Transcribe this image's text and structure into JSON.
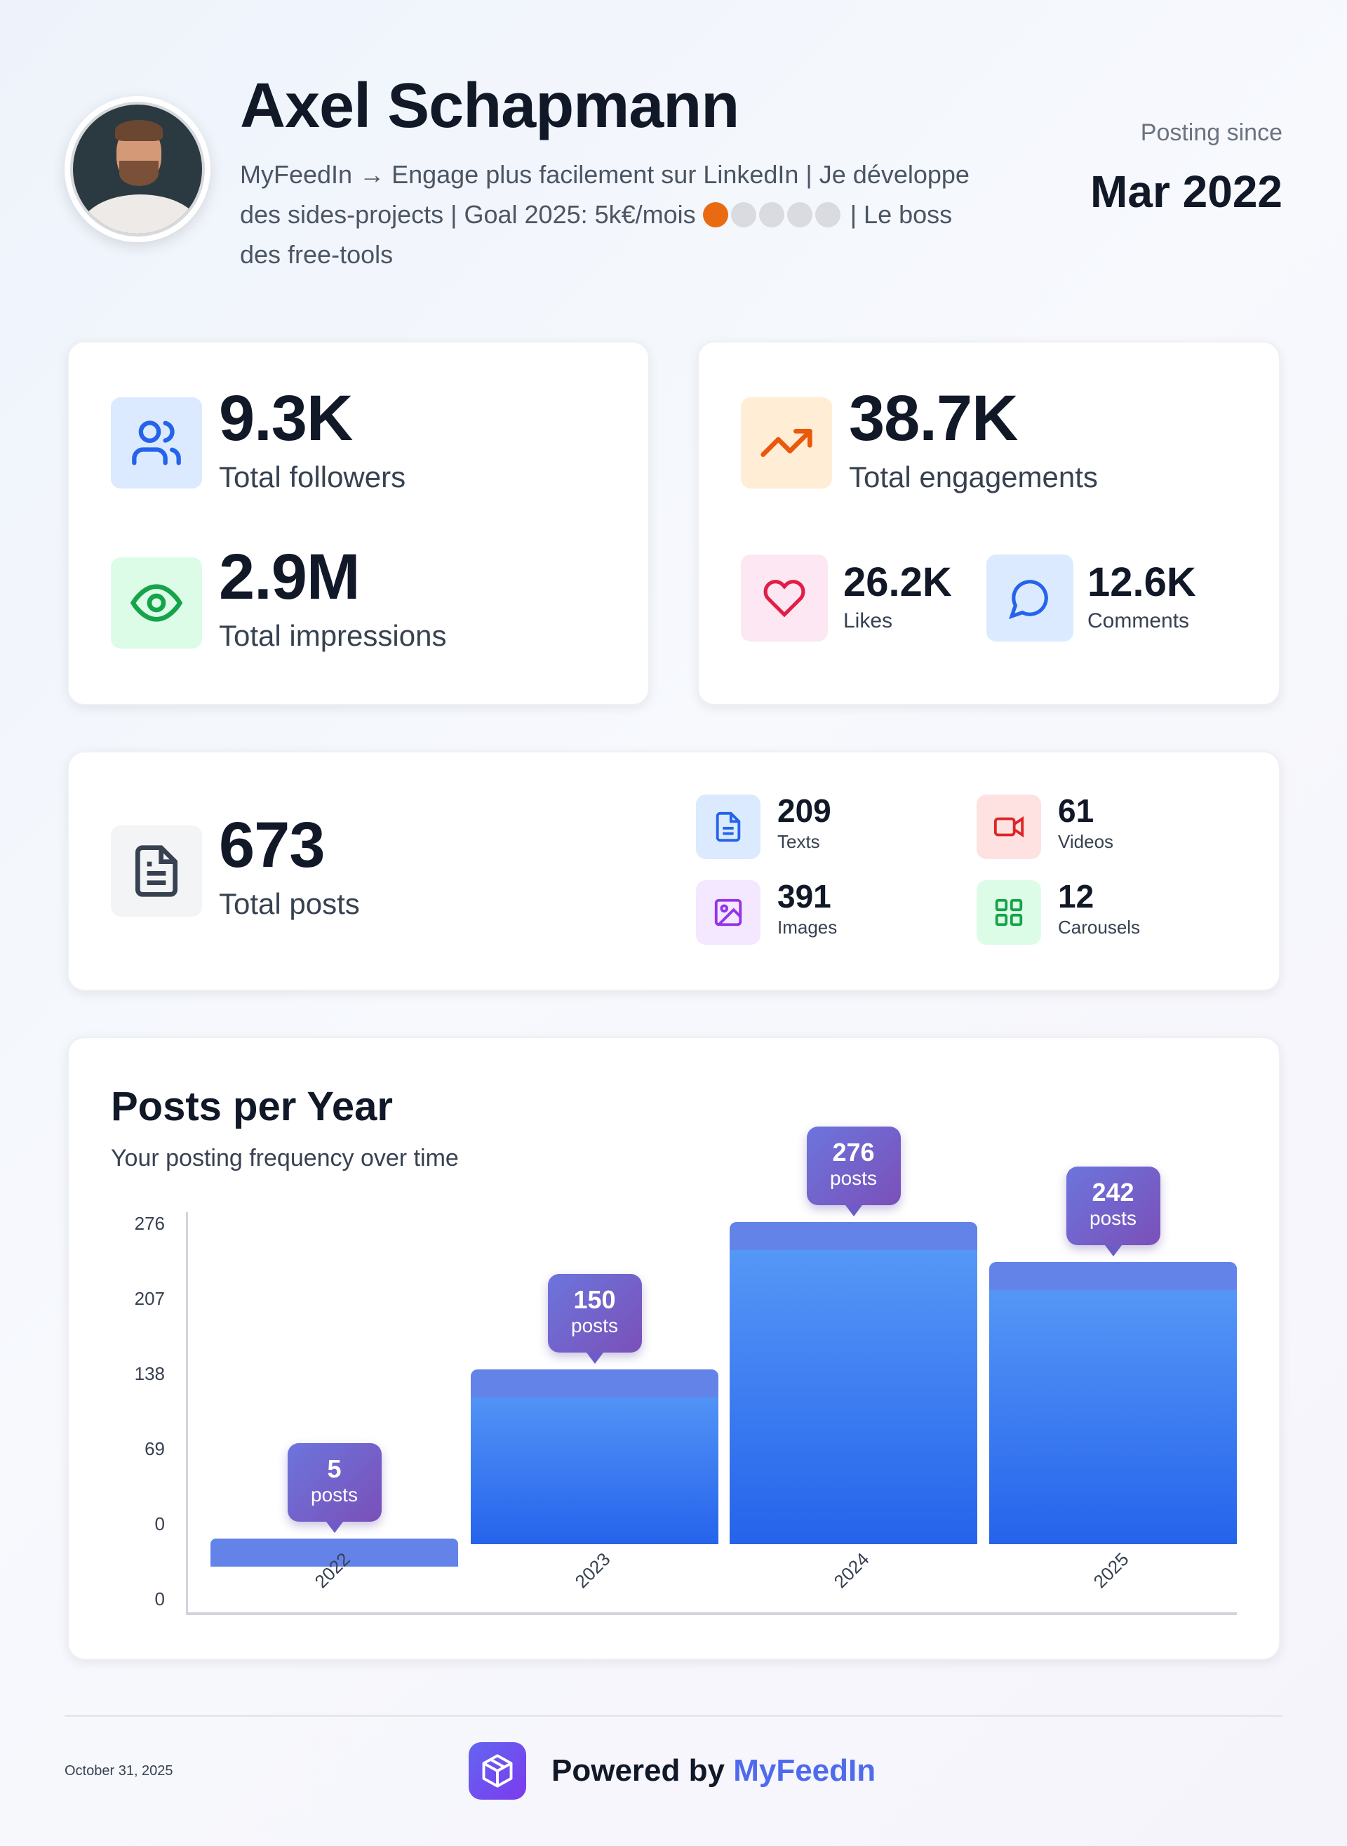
{
  "profile": {
    "name": "Axel Schapmann",
    "bio_line1": "MyFeedIn → Engage plus facilement sur LinkedIn | Je développe",
    "bio_line2a": "des sides-projects | Goal 2025: 5k€/mois",
    "bio_line2b": "| Le boss",
    "bio_line3": "des free-tools",
    "goal_progress": {
      "filled": 1,
      "total": 5
    },
    "posting_since_label": "Posting since",
    "posting_since_value": "Mar 2022"
  },
  "audience": {
    "followers_value": "9.3K",
    "followers_label": "Total followers",
    "impressions_value": "2.9M",
    "impressions_label": "Total impressions"
  },
  "engagement": {
    "total_value": "38.7K",
    "total_label": "Total engagements",
    "likes_value": "26.2K",
    "likes_label": "Likes",
    "comments_value": "12.6K",
    "comments_label": "Comments"
  },
  "posts": {
    "total_value": "673",
    "total_label": "Total posts",
    "types": [
      {
        "value": "209",
        "label": "Texts"
      },
      {
        "value": "61",
        "label": "Videos"
      },
      {
        "value": "391",
        "label": "Images"
      },
      {
        "value": "12",
        "label": "Carousels"
      }
    ]
  },
  "chart_data": {
    "type": "bar",
    "title": "Posts per Year",
    "subtitle": "Your posting frequency over time",
    "categories": [
      "2022",
      "2023",
      "2024",
      "2025"
    ],
    "values": [
      5,
      150,
      276,
      242
    ],
    "value_suffix": "posts",
    "yticks": [
      "276",
      "207",
      "138",
      "69",
      "0",
      "0"
    ],
    "ylim": [
      0,
      276
    ],
    "color": "#2563eb",
    "tooltip_color": "#6c63d8"
  },
  "footer": {
    "date": "October 31, 2025",
    "powered_by": "Powered by",
    "brand": "MyFeedIn",
    "brand_color": "#4f6bed"
  }
}
